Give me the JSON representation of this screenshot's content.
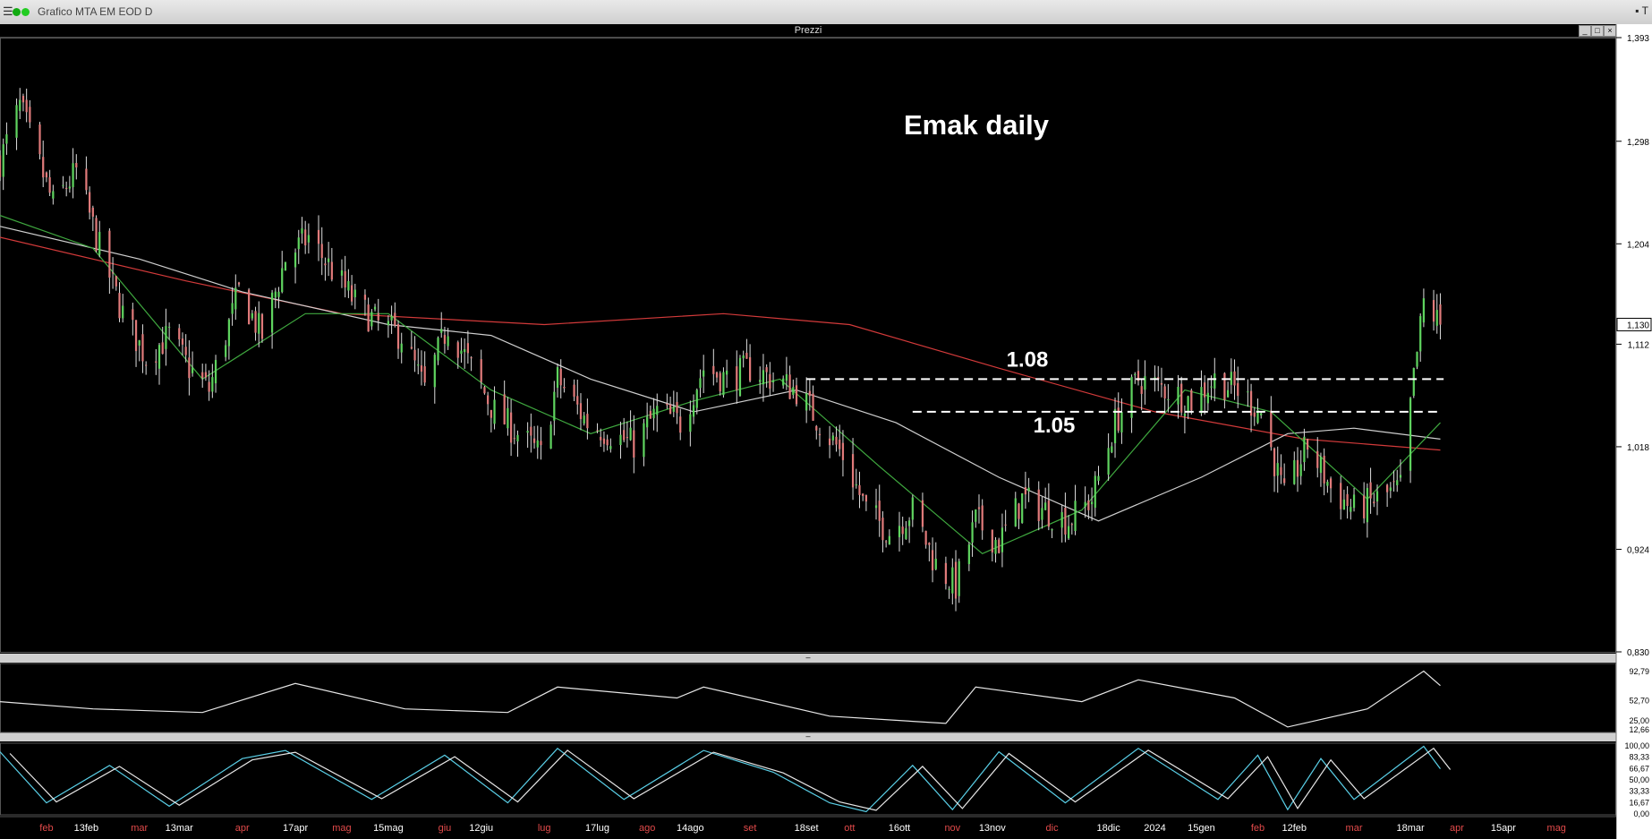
{
  "window": {
    "title": "Grafico MTA EM EOD D",
    "menu_icon": "hamburger-icon",
    "controls": "▪ T"
  },
  "panel": {
    "title": "Prezzi"
  },
  "chart_data": {
    "type": "candlestick",
    "title": "Emak daily",
    "price_axis": {
      "ticks": [
        "1,393",
        "1,298",
        "1,204",
        "1,112",
        "1,018",
        "0,924",
        "0,830"
      ],
      "ylim": [
        0.83,
        1.393
      ],
      "last_price_label": "1,130"
    },
    "levels": [
      {
        "label": "1.08",
        "value": 1.08,
        "from_date": "2023-09-18",
        "to_date": "2024-03-28"
      },
      {
        "label": "1.05",
        "value": 1.05,
        "from_date": "2023-10-20",
        "to_date": "2024-03-27"
      }
    ],
    "x_axis_labels": [
      {
        "text": "feb",
        "date": "2023-02-01"
      },
      {
        "text": "13feb",
        "date": "2023-02-13"
      },
      {
        "text": "mar",
        "date": "2023-03-01"
      },
      {
        "text": "13mar",
        "date": "2023-03-13"
      },
      {
        "text": "apr",
        "date": "2023-04-01"
      },
      {
        "text": "17apr",
        "date": "2023-04-17"
      },
      {
        "text": "mag",
        "date": "2023-05-01"
      },
      {
        "text": "15mag",
        "date": "2023-05-15"
      },
      {
        "text": "giu",
        "date": "2023-06-01"
      },
      {
        "text": "12giu",
        "date": "2023-06-12"
      },
      {
        "text": "lug",
        "date": "2023-07-01"
      },
      {
        "text": "17lug",
        "date": "2023-07-17"
      },
      {
        "text": "ago",
        "date": "2023-08-01"
      },
      {
        "text": "14ago",
        "date": "2023-08-14"
      },
      {
        "text": "set",
        "date": "2023-09-01"
      },
      {
        "text": "18set",
        "date": "2023-09-18"
      },
      {
        "text": "ott",
        "date": "2023-10-01"
      },
      {
        "text": "16ott",
        "date": "2023-10-16"
      },
      {
        "text": "nov",
        "date": "2023-11-01"
      },
      {
        "text": "13nov",
        "date": "2023-11-13"
      },
      {
        "text": "dic",
        "date": "2023-12-01"
      },
      {
        "text": "18dic",
        "date": "2023-12-18"
      },
      {
        "text": "2024",
        "date": "2024-01-01"
      },
      {
        "text": "15gen",
        "date": "2024-01-15"
      },
      {
        "text": "feb",
        "date": "2024-02-01"
      },
      {
        "text": "12feb",
        "date": "2024-02-12"
      },
      {
        "text": "mar",
        "date": "2024-03-01"
      },
      {
        "text": "18mar",
        "date": "2024-03-18"
      },
      {
        "text": "apr",
        "date": "2024-04-01"
      },
      {
        "text": "15apr",
        "date": "2024-04-15"
      },
      {
        "text": "mag",
        "date": "2024-05-01"
      }
    ],
    "close_path": [
      {
        "date": "2023-01-18",
        "close": 1.28
      },
      {
        "date": "2023-01-24",
        "close": 1.33
      },
      {
        "date": "2023-02-03",
        "close": 1.24
      },
      {
        "date": "2023-02-10",
        "close": 1.27
      },
      {
        "date": "2023-02-17",
        "close": 1.2
      },
      {
        "date": "2023-02-24",
        "close": 1.14
      },
      {
        "date": "2023-03-03",
        "close": 1.1
      },
      {
        "date": "2023-03-10",
        "close": 1.12
      },
      {
        "date": "2023-03-16",
        "close": 1.09
      },
      {
        "date": "2023-03-22",
        "close": 1.07
      },
      {
        "date": "2023-03-31",
        "close": 1.16
      },
      {
        "date": "2023-04-07",
        "close": 1.12
      },
      {
        "date": "2023-04-14",
        "close": 1.19
      },
      {
        "date": "2023-04-21",
        "close": 1.21
      },
      {
        "date": "2023-04-28",
        "close": 1.18
      },
      {
        "date": "2023-05-05",
        "close": 1.15
      },
      {
        "date": "2023-05-12",
        "close": 1.13
      },
      {
        "date": "2023-05-19",
        "close": 1.12
      },
      {
        "date": "2023-05-26",
        "close": 1.07
      },
      {
        "date": "2023-06-02",
        "close": 1.13
      },
      {
        "date": "2023-06-09",
        "close": 1.09
      },
      {
        "date": "2023-06-16",
        "close": 1.05
      },
      {
        "date": "2023-06-23",
        "close": 1.03
      },
      {
        "date": "2023-06-30",
        "close": 1.01
      },
      {
        "date": "2023-07-05",
        "close": 1.08
      },
      {
        "date": "2023-07-14",
        "close": 1.04
      },
      {
        "date": "2023-07-21",
        "close": 1.03
      },
      {
        "date": "2023-07-28",
        "close": 1.02
      },
      {
        "date": "2023-08-04",
        "close": 1.05
      },
      {
        "date": "2023-08-11",
        "close": 1.04
      },
      {
        "date": "2023-08-18",
        "close": 1.09
      },
      {
        "date": "2023-08-25",
        "close": 1.08
      },
      {
        "date": "2023-09-01",
        "close": 1.09
      },
      {
        "date": "2023-09-08",
        "close": 1.08
      },
      {
        "date": "2023-09-15",
        "close": 1.07
      },
      {
        "date": "2023-09-22",
        "close": 1.04
      },
      {
        "date": "2023-09-29",
        "close": 1.01
      },
      {
        "date": "2023-10-06",
        "close": 0.96
      },
      {
        "date": "2023-10-13",
        "close": 0.94
      },
      {
        "date": "2023-10-20",
        "close": 0.96
      },
      {
        "date": "2023-10-27",
        "close": 0.91
      },
      {
        "date": "2023-11-02",
        "close": 0.89
      },
      {
        "date": "2023-11-08",
        "close": 0.95
      },
      {
        "date": "2023-11-15",
        "close": 0.93
      },
      {
        "date": "2023-11-22",
        "close": 0.97
      },
      {
        "date": "2023-11-29",
        "close": 0.96
      },
      {
        "date": "2023-12-06",
        "close": 0.95
      },
      {
        "date": "2023-12-13",
        "close": 0.97
      },
      {
        "date": "2023-12-20",
        "close": 1.04
      },
      {
        "date": "2023-12-27",
        "close": 1.08
      },
      {
        "date": "2024-01-05",
        "close": 1.07
      },
      {
        "date": "2024-01-12",
        "close": 1.06
      },
      {
        "date": "2024-01-19",
        "close": 1.08
      },
      {
        "date": "2024-01-26",
        "close": 1.07
      },
      {
        "date": "2024-02-02",
        "close": 1.05
      },
      {
        "date": "2024-02-09",
        "close": 0.97
      },
      {
        "date": "2024-02-16",
        "close": 1.02
      },
      {
        "date": "2024-02-23",
        "close": 0.98
      },
      {
        "date": "2024-03-01",
        "close": 0.96
      },
      {
        "date": "2024-03-08",
        "close": 0.97
      },
      {
        "date": "2024-03-15",
        "close": 0.98
      },
      {
        "date": "2024-03-19",
        "close": 1.08
      },
      {
        "date": "2024-03-22",
        "close": 1.15
      },
      {
        "date": "2024-03-27",
        "close": 1.13
      }
    ],
    "ma_slow": [
      {
        "date": "2023-01-18",
        "value": 1.21
      },
      {
        "date": "2023-03-15",
        "value": 1.17
      },
      {
        "date": "2023-05-01",
        "value": 1.14
      },
      {
        "date": "2023-07-01",
        "value": 1.13
      },
      {
        "date": "2023-08-24",
        "value": 1.14
      },
      {
        "date": "2023-10-01",
        "value": 1.13
      },
      {
        "date": "2023-11-15",
        "value": 1.09
      },
      {
        "date": "2024-01-01",
        "value": 1.05
      },
      {
        "date": "2024-02-15",
        "value": 1.025
      },
      {
        "date": "2024-03-27",
        "value": 1.015
      }
    ],
    "ma_mid": [
      {
        "date": "2023-01-18",
        "value": 1.22
      },
      {
        "date": "2023-03-01",
        "value": 1.19
      },
      {
        "date": "2023-04-01",
        "value": 1.16
      },
      {
        "date": "2023-05-15",
        "value": 1.13
      },
      {
        "date": "2023-06-15",
        "value": 1.12
      },
      {
        "date": "2023-07-15",
        "value": 1.08
      },
      {
        "date": "2023-08-15",
        "value": 1.05
      },
      {
        "date": "2023-09-15",
        "value": 1.07
      },
      {
        "date": "2023-10-15",
        "value": 1.04
      },
      {
        "date": "2023-11-15",
        "value": 0.99
      },
      {
        "date": "2023-12-15",
        "value": 0.95
      },
      {
        "date": "2024-01-15",
        "value": 0.99
      },
      {
        "date": "2024-02-10",
        "value": 1.03
      },
      {
        "date": "2024-03-01",
        "value": 1.035
      },
      {
        "date": "2024-03-27",
        "value": 1.025
      }
    ],
    "ma_fast": [
      {
        "date": "2023-01-18",
        "value": 1.23
      },
      {
        "date": "2023-02-15",
        "value": 1.2
      },
      {
        "date": "2023-03-20",
        "value": 1.08
      },
      {
        "date": "2023-04-20",
        "value": 1.14
      },
      {
        "date": "2023-05-15",
        "value": 1.14
      },
      {
        "date": "2023-06-15",
        "value": 1.07
      },
      {
        "date": "2023-07-15",
        "value": 1.03
      },
      {
        "date": "2023-08-15",
        "value": 1.06
      },
      {
        "date": "2023-09-10",
        "value": 1.08
      },
      {
        "date": "2023-10-10",
        "value": 1.0
      },
      {
        "date": "2023-11-10",
        "value": 0.92
      },
      {
        "date": "2023-12-10",
        "value": 0.96
      },
      {
        "date": "2024-01-10",
        "value": 1.07
      },
      {
        "date": "2024-02-05",
        "value": 1.05
      },
      {
        "date": "2024-03-05",
        "value": 0.97
      },
      {
        "date": "2024-03-27",
        "value": 1.04
      }
    ],
    "oscillator_1": {
      "ticks": [
        "92,79",
        "52,70",
        "25,00",
        "12,66"
      ],
      "ylim": [
        10,
        100
      ],
      "path": [
        {
          "date": "2023-01-18",
          "value": 50
        },
        {
          "date": "2023-02-15",
          "value": 40
        },
        {
          "date": "2023-03-20",
          "value": 35
        },
        {
          "date": "2023-04-17",
          "value": 75
        },
        {
          "date": "2023-05-20",
          "value": 40
        },
        {
          "date": "2023-06-20",
          "value": 35
        },
        {
          "date": "2023-07-05",
          "value": 70
        },
        {
          "date": "2023-08-10",
          "value": 55
        },
        {
          "date": "2023-08-18",
          "value": 70
        },
        {
          "date": "2023-09-25",
          "value": 30
        },
        {
          "date": "2023-10-30",
          "value": 20
        },
        {
          "date": "2023-11-08",
          "value": 70
        },
        {
          "date": "2023-12-10",
          "value": 50
        },
        {
          "date": "2023-12-27",
          "value": 80
        },
        {
          "date": "2024-01-25",
          "value": 55
        },
        {
          "date": "2024-02-10",
          "value": 15
        },
        {
          "date": "2024-03-05",
          "value": 40
        },
        {
          "date": "2024-03-22",
          "value": 92
        },
        {
          "date": "2024-03-27",
          "value": 72
        }
      ]
    },
    "oscillator_2": {
      "ticks": [
        "100,00",
        "83,33",
        "66,67",
        "50,00",
        "33,33",
        "16,67",
        "0,00"
      ],
      "ylim": [
        0,
        100
      ],
      "main": [
        {
          "date": "2023-01-18",
          "value": 90
        },
        {
          "date": "2023-02-01",
          "value": 15
        },
        {
          "date": "2023-02-20",
          "value": 70
        },
        {
          "date": "2023-03-10",
          "value": 10
        },
        {
          "date": "2023-04-01",
          "value": 80
        },
        {
          "date": "2023-04-14",
          "value": 92
        },
        {
          "date": "2023-05-10",
          "value": 20
        },
        {
          "date": "2023-06-01",
          "value": 85
        },
        {
          "date": "2023-06-20",
          "value": 15
        },
        {
          "date": "2023-07-05",
          "value": 95
        },
        {
          "date": "2023-07-25",
          "value": 20
        },
        {
          "date": "2023-08-18",
          "value": 92
        },
        {
          "date": "2023-09-08",
          "value": 60
        },
        {
          "date": "2023-09-25",
          "value": 15
        },
        {
          "date": "2023-10-06",
          "value": 2
        },
        {
          "date": "2023-10-20",
          "value": 70
        },
        {
          "date": "2023-11-01",
          "value": 5
        },
        {
          "date": "2023-11-15",
          "value": 90
        },
        {
          "date": "2023-12-05",
          "value": 15
        },
        {
          "date": "2023-12-27",
          "value": 95
        },
        {
          "date": "2024-01-20",
          "value": 20
        },
        {
          "date": "2024-02-01",
          "value": 85
        },
        {
          "date": "2024-02-10",
          "value": 5
        },
        {
          "date": "2024-02-20",
          "value": 80
        },
        {
          "date": "2024-03-01",
          "value": 20
        },
        {
          "date": "2024-03-22",
          "value": 98
        },
        {
          "date": "2024-03-27",
          "value": 65
        }
      ],
      "signal_offset_days": 3
    }
  }
}
